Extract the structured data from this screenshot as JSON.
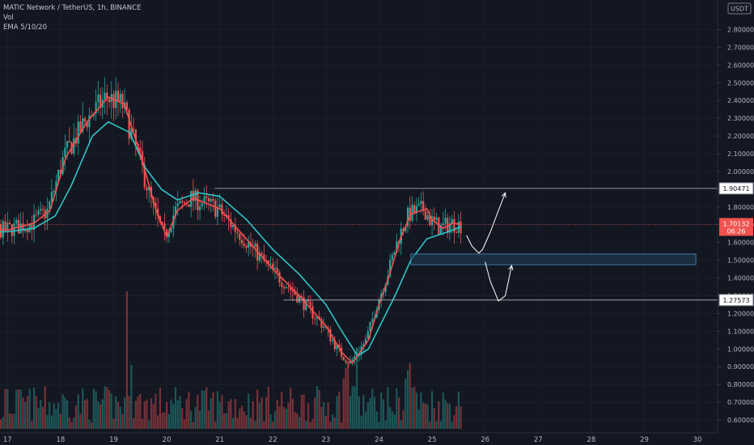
{
  "legend": {
    "symbol": "MATIC Network / TetherUS, 1h, BINANCE",
    "volume": "Vol",
    "ema": "EMA 5/10/20"
  },
  "currency_badge": "USDT",
  "colors": {
    "background": "#131722",
    "up": "#26a69a",
    "down": "#ef5350",
    "ema_fast": "#f0524f",
    "ema_slow": "#2ec4c4",
    "level_line": "#b2b5be",
    "zone_fill": "#1e3a52",
    "zone_border": "#4a90c2",
    "price_badge": "#f0524f"
  },
  "chart_data": {
    "type": "candlestick",
    "y_axis": {
      "ylim": [
        0.55,
        2.93
      ],
      "ticks": [
        "2.80000",
        "2.70000",
        "2.60000",
        "2.50000",
        "2.40000",
        "2.30000",
        "2.20000",
        "2.10000",
        "2.00000",
        "1.90000",
        "1.80000",
        "1.70000",
        "1.60000",
        "1.50000",
        "1.40000",
        "1.30000",
        "1.20000",
        "1.10000",
        "1.00000",
        "0.90000",
        "0.80000",
        "0.70000",
        "0.60000"
      ]
    },
    "x_axis": {
      "ticks": [
        "17",
        "18",
        "19",
        "20",
        "21",
        "22",
        "23",
        "24",
        "25",
        "26",
        "27",
        "28",
        "29",
        "30"
      ]
    },
    "key_levels": [
      {
        "label": "1.90471",
        "value": 1.90471
      },
      {
        "label": "1.27573",
        "value": 1.27573
      }
    ],
    "current_price": {
      "label": "1.70132",
      "countdown": "06:26",
      "value": 1.70132
    },
    "support_zone": {
      "from": 1.475,
      "to": 1.535
    },
    "ema_fast_path": [
      [
        16.0,
        1.62
      ],
      [
        16.5,
        1.68
      ],
      [
        17.0,
        1.67
      ],
      [
        17.5,
        1.71
      ],
      [
        17.8,
        1.78
      ],
      [
        18.1,
        2.08
      ],
      [
        18.5,
        2.28
      ],
      [
        18.9,
        2.42
      ],
      [
        19.2,
        2.38
      ],
      [
        19.5,
        2.1
      ],
      [
        19.8,
        1.78
      ],
      [
        20.0,
        1.63
      ],
      [
        20.2,
        1.78
      ],
      [
        20.5,
        1.85
      ],
      [
        21.0,
        1.79
      ],
      [
        21.5,
        1.62
      ],
      [
        22.0,
        1.45
      ],
      [
        22.5,
        1.3
      ],
      [
        23.0,
        1.13
      ],
      [
        23.3,
        0.98
      ],
      [
        23.5,
        0.92
      ],
      [
        23.8,
        1.05
      ],
      [
        24.0,
        1.25
      ],
      [
        24.2,
        1.42
      ],
      [
        24.4,
        1.62
      ],
      [
        24.6,
        1.76
      ],
      [
        24.9,
        1.79
      ],
      [
        25.0,
        1.73
      ],
      [
        25.2,
        1.68
      ],
      [
        25.4,
        1.71
      ],
      [
        25.55,
        1.7
      ]
    ],
    "ema_slow_path": [
      [
        16.0,
        1.62
      ],
      [
        16.5,
        1.66
      ],
      [
        17.0,
        1.66
      ],
      [
        17.5,
        1.68
      ],
      [
        17.9,
        1.75
      ],
      [
        18.2,
        1.92
      ],
      [
        18.6,
        2.2
      ],
      [
        18.9,
        2.28
      ],
      [
        19.3,
        2.22
      ],
      [
        19.6,
        2.02
      ],
      [
        19.9,
        1.9
      ],
      [
        20.2,
        1.84
      ],
      [
        20.6,
        1.88
      ],
      [
        21.0,
        1.86
      ],
      [
        21.5,
        1.73
      ],
      [
        22.0,
        1.56
      ],
      [
        22.5,
        1.42
      ],
      [
        23.0,
        1.25
      ],
      [
        23.3,
        1.1
      ],
      [
        23.6,
        0.96
      ],
      [
        23.8,
        1.0
      ],
      [
        24.0,
        1.12
      ],
      [
        24.3,
        1.3
      ],
      [
        24.6,
        1.5
      ],
      [
        24.9,
        1.62
      ],
      [
        25.1,
        1.64
      ],
      [
        25.3,
        1.66
      ],
      [
        25.55,
        1.69
      ]
    ],
    "projections": [
      {
        "path": [
          [
            25.65,
            1.64
          ],
          [
            25.75,
            1.58
          ],
          [
            25.88,
            1.54
          ],
          [
            25.95,
            1.56
          ],
          [
            26.1,
            1.66
          ],
          [
            26.25,
            1.78
          ],
          [
            26.38,
            1.88
          ]
        ]
      },
      {
        "path": [
          [
            26.0,
            1.49
          ],
          [
            26.1,
            1.38
          ],
          [
            26.25,
            1.27
          ],
          [
            26.38,
            1.3
          ],
          [
            26.45,
            1.4
          ],
          [
            26.5,
            1.47
          ]
        ]
      }
    ]
  }
}
